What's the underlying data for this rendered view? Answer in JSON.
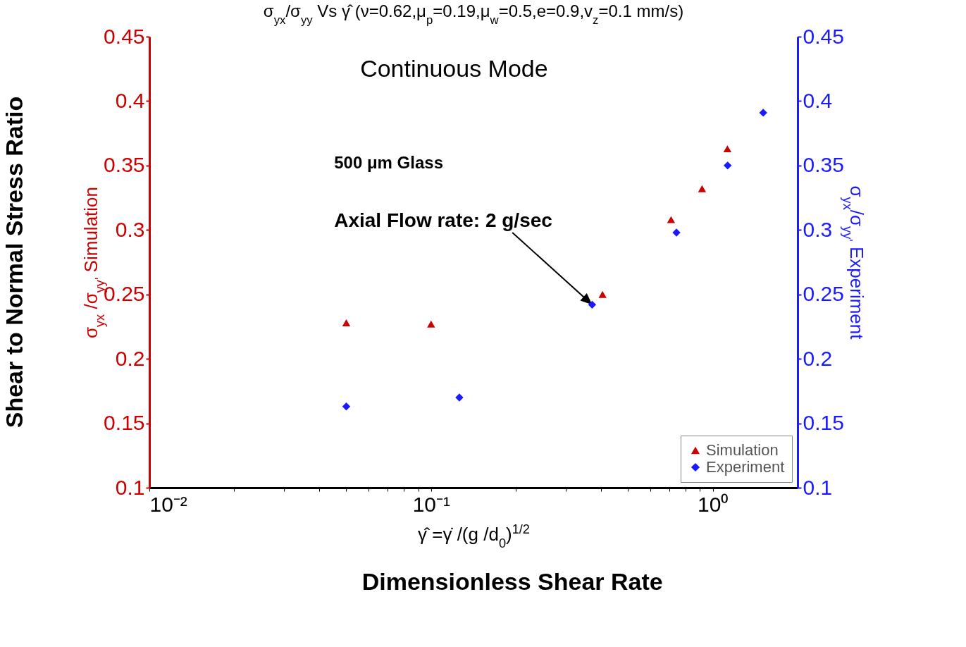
{
  "chart_data": {
    "type": "scatter",
    "title": "σ$_{yx}$/σ$_{yy}$ Vs γ̂ (ν=0.62,μ$_{p}$=0.19,μ$_{w}$=0.5,e=0.9,v$_{z}$=0.1 mm/s)",
    "xlabel": "γ̂ =γ̇ /(g /d$_{0}$)$^{1/2}$",
    "ylabel": "σ$_{yx}$ /σ$_{yy'}$ Simulation",
    "y2label": "σ$_{yx}$/σ$_{yy'}$ Experiment",
    "log": "x",
    "xlim": [
      0.01,
      2
    ],
    "xticks": [
      {
        "value": 0.01,
        "label": "10⁻²"
      },
      {
        "value": 0.02,
        "label": null
      },
      {
        "value": 0.03,
        "label": null
      },
      {
        "value": 0.04,
        "label": null
      },
      {
        "value": 0.05,
        "label": null
      },
      {
        "value": 0.06,
        "label": null
      },
      {
        "value": 0.07,
        "label": null
      },
      {
        "value": 0.08,
        "label": null
      },
      {
        "value": 0.09,
        "label": null
      },
      {
        "value": 0.1,
        "label": "10⁻¹"
      },
      {
        "value": 0.2,
        "label": null
      },
      {
        "value": 0.3,
        "label": null
      },
      {
        "value": 0.4,
        "label": null
      },
      {
        "value": 0.5,
        "label": null
      },
      {
        "value": 0.6,
        "label": null
      },
      {
        "value": 0.7,
        "label": null
      },
      {
        "value": 0.8,
        "label": null
      },
      {
        "value": 0.9,
        "label": null
      },
      {
        "value": 1,
        "label": "10⁰"
      }
    ],
    "ylim": [
      0.1,
      0.45
    ],
    "yticks": [
      0.1,
      0.15,
      0.2,
      0.25,
      0.3,
      0.35,
      0.4,
      0.45
    ],
    "y2lim": [
      0.1,
      0.45
    ],
    "y2ticks": [
      0.1,
      0.15,
      0.2,
      0.25,
      0.3,
      0.35,
      0.4,
      0.45
    ],
    "grid": false,
    "legend": "bottom right",
    "series": [
      {
        "name": "Simulation",
        "color": "#cc0000",
        "marker": "triangle",
        "x": [
          0.05,
          0.1,
          0.406,
          0.711,
          0.916,
          1.127
        ],
        "values": [
          0.228,
          0.227,
          0.25,
          0.308,
          0.332,
          0.363
        ]
      },
      {
        "name": "Experiment",
        "color": "#1a1aff",
        "marker": "diamond",
        "axis": "y2",
        "x": [
          0.05,
          0.126,
          0.373,
          0.743,
          1.129,
          1.51
        ],
        "values": [
          0.163,
          0.17,
          0.242,
          0.298,
          0.35,
          0.391
        ]
      }
    ],
    "annotations": [
      "Shear to Normal Stress Ratio",
      "Dimensionless Shear Rate",
      "Continuous Mode",
      "500 μm Glass",
      {
        "text": "Axial Flow rate: 2 g/sec",
        "x": 0.373,
        "y": 0.242
      }
    ]
  }
}
